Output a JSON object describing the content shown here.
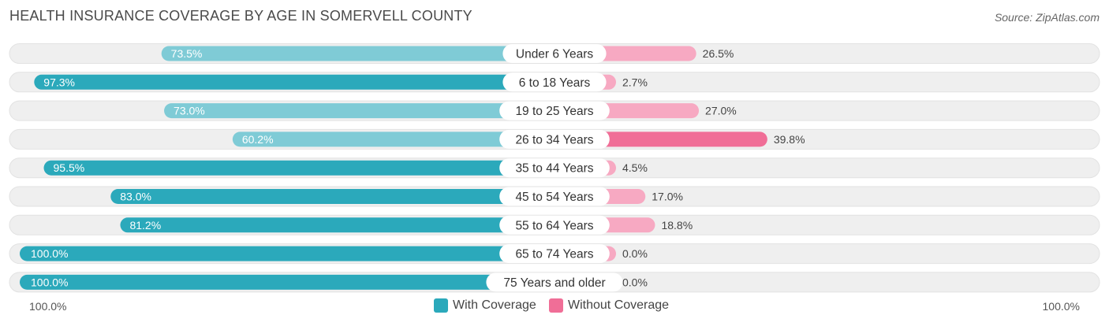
{
  "header": {
    "title": "HEALTH INSURANCE COVERAGE BY AGE IN SOMERVELL COUNTY",
    "source": "Source: ZipAtlas.com"
  },
  "chart_data": {
    "type": "bar",
    "orientation": "diverging-horizontal",
    "title": "HEALTH INSURANCE COVERAGE BY AGE IN SOMERVELL COUNTY",
    "categories": [
      "Under 6 Years",
      "6 to 18 Years",
      "19 to 25 Years",
      "26 to 34 Years",
      "35 to 44 Years",
      "45 to 54 Years",
      "55 to 64 Years",
      "65 to 74 Years",
      "75 Years and older"
    ],
    "series": [
      {
        "name": "With Coverage",
        "values": [
          73.5,
          97.3,
          73.0,
          60.2,
          95.5,
          83.0,
          81.2,
          100.0,
          100.0
        ],
        "labels": [
          "73.5%",
          "97.3%",
          "73.0%",
          "60.2%",
          "95.5%",
          "83.0%",
          "81.2%",
          "100.0%",
          "100.0%"
        ]
      },
      {
        "name": "Without Coverage",
        "values": [
          26.5,
          2.7,
          27.0,
          39.8,
          4.5,
          17.0,
          18.8,
          0.0,
          0.0
        ],
        "labels": [
          "26.5%",
          "2.7%",
          "27.0%",
          "39.8%",
          "4.5%",
          "17.0%",
          "18.8%",
          "0.0%",
          "0.0%"
        ]
      }
    ],
    "xlim": [
      -100,
      100
    ],
    "axis_left_label": "100.0%",
    "axis_right_label": "100.0%",
    "legend_position": "bottom-center",
    "colors": {
      "with_strong": "#2ba9bb",
      "with_light": "#7fcbd6",
      "without_strong": "#f06e97",
      "without_light": "#f7a9c2",
      "track": "#efefef"
    }
  },
  "legend": {
    "with_label": "With Coverage",
    "without_label": "Without Coverage"
  }
}
